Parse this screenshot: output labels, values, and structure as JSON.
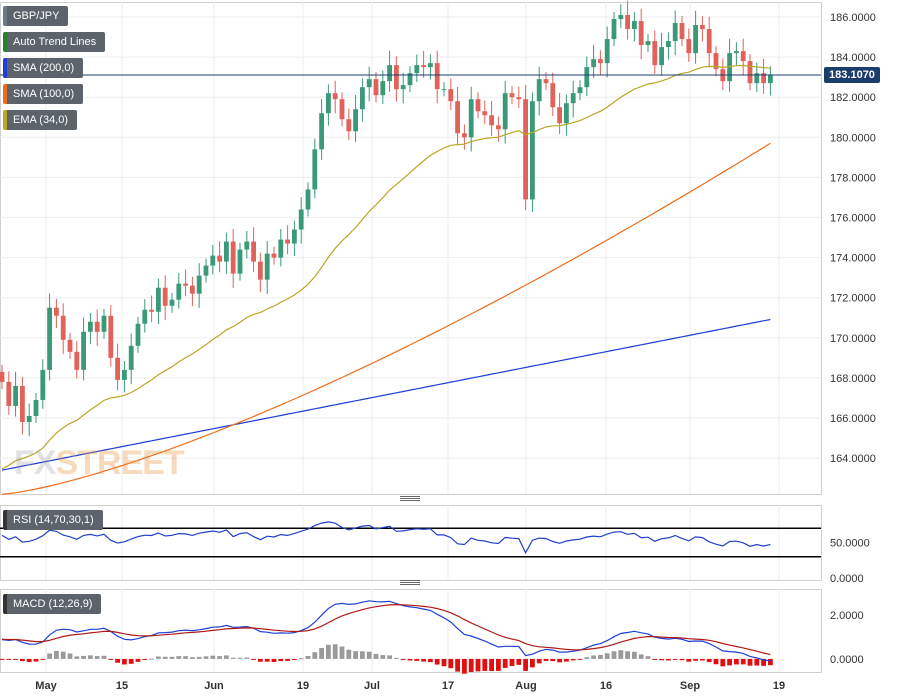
{
  "header": {
    "legend_items": [
      {
        "label": "GBP/JPY",
        "color": "#6b7a89"
      },
      {
        "label": "Auto Trend Lines",
        "color": "#2e7d32"
      },
      {
        "label": "SMA (200,0)",
        "color": "#1f3fd6"
      },
      {
        "label": "SMA (100,0)",
        "color": "#ef6c1a"
      },
      {
        "label": "EMA (34,0)",
        "color": "#b8a826"
      }
    ]
  },
  "price_tag": "183.1070",
  "watermark": {
    "main": "FX",
    "accent": "STREET"
  },
  "rsi_label": "RSI (14,70,30,1)",
  "macd_label": "MACD (12,26,9)",
  "colors": {
    "up": "#3a9a78",
    "down": "#e0625a",
    "sma200": "#1f3fd6",
    "sma100": "#ef6c1a",
    "ema34": "#b8a826",
    "rsi": "#2040c8",
    "macd": "#1f3fd6",
    "signal": "#b01818",
    "hist_pos": "#9a9a9a",
    "hist_neg": "#e01010"
  },
  "chart_data": [
    {
      "type": "candlestick",
      "title": "GBP/JPY",
      "ylim": [
        162.0,
        187.0
      ],
      "yticks": [
        "164.0000",
        "166.0000",
        "168.0000",
        "170.0000",
        "172.0000",
        "174.0000",
        "176.0000",
        "178.0000",
        "180.0000",
        "182.0000",
        "184.0000",
        "186.0000"
      ],
      "xtick_labels": [
        "May",
        "15",
        "Jun",
        "19",
        "Jul",
        "17",
        "Aug",
        "16",
        "Sep",
        "19"
      ],
      "current_price": 183.107,
      "close": [
        167.8,
        166.6,
        167.6,
        165.8,
        166.1,
        166.9,
        168.4,
        171.5,
        171.1,
        169.9,
        169.3,
        168.4,
        170.3,
        170.8,
        170.3,
        171.1,
        169.0,
        167.9,
        168.4,
        169.6,
        170.7,
        171.4,
        171.3,
        172.5,
        171.6,
        171.9,
        172.7,
        172.6,
        172.2,
        173.1,
        173.6,
        174.1,
        173.8,
        174.8,
        173.2,
        174.4,
        174.8,
        173.8,
        172.9,
        174.2,
        174.0,
        174.9,
        174.7,
        175.4,
        176.4,
        177.4,
        179.4,
        181.2,
        182.2,
        181.9,
        180.9,
        180.3,
        181.4,
        182.5,
        182.9,
        182.1,
        182.8,
        183.6,
        182.4,
        182.6,
        183.2,
        183.6,
        183.5,
        183.7,
        182.4,
        182.4,
        181.8,
        180.2,
        180.0,
        181.9,
        181.3,
        181.1,
        180.6,
        180.4,
        182.2,
        182.0,
        181.9,
        176.9,
        181.8,
        182.9,
        182.7,
        181.5,
        180.7,
        181.7,
        182.2,
        182.5,
        183.5,
        183.9,
        183.7,
        184.9,
        185.9,
        186.1,
        185.4,
        185.8,
        184.6,
        184.8,
        183.6,
        184.5,
        184.8,
        185.7,
        184.9,
        184.2,
        185.6,
        185.4,
        184.2,
        183.4,
        182.8,
        184.2,
        184.3,
        183.8,
        182.7,
        183.2,
        182.7,
        183.1
      ]
    },
    {
      "type": "line",
      "title": "RSI (14,70,30,1)",
      "ylim": [
        0,
        100
      ],
      "yticks": [
        "0.0000",
        "50.0000"
      ],
      "levels": [
        70,
        30
      ]
    },
    {
      "type": "line",
      "title": "MACD (12,26,9)",
      "ylim": [
        -0.6,
        3.2
      ],
      "yticks": [
        "0.0000",
        "2.0000"
      ],
      "series": []
    }
  ]
}
